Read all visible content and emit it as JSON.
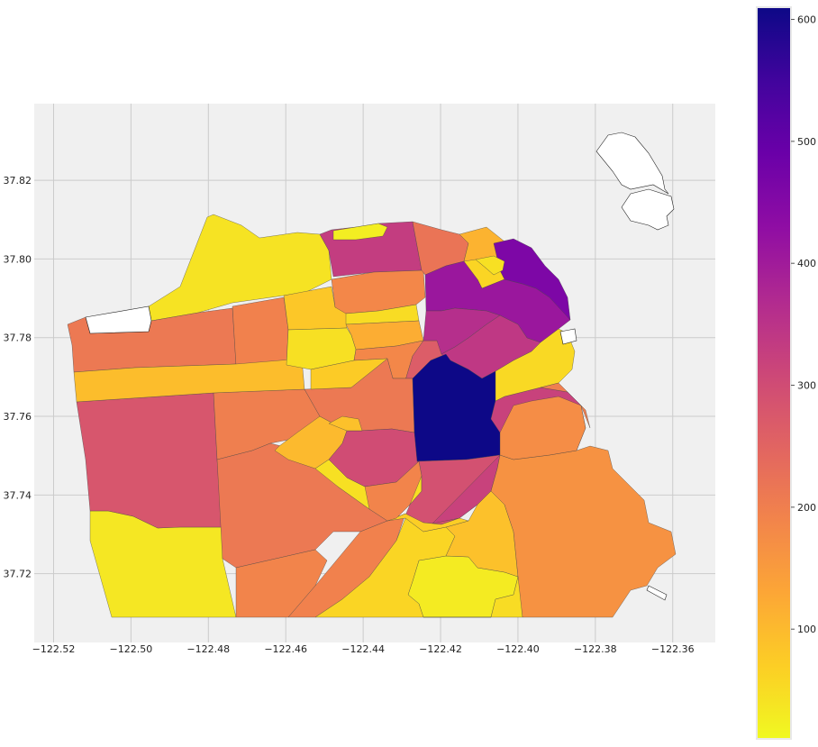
{
  "chart_data": {
    "type": "heatmap",
    "subtype": "choropleth-map",
    "title": "",
    "xlabel": "",
    "ylabel": "",
    "x_ticks": [
      "−122.52",
      "−122.50",
      "−122.48",
      "−122.46",
      "−122.44",
      "−122.42",
      "−122.40",
      "−122.38",
      "−122.36"
    ],
    "y_ticks": [
      "37.72",
      "37.74",
      "37.76",
      "37.78",
      "37.80",
      "37.82"
    ],
    "x_values": [
      -122.52,
      -122.5,
      -122.48,
      -122.46,
      -122.44,
      -122.42,
      -122.4,
      -122.38,
      -122.36
    ],
    "y_values": [
      37.72,
      37.74,
      37.76,
      37.78,
      37.8,
      37.82
    ],
    "xlim": [
      -122.525,
      -122.349
    ],
    "ylim": [
      37.7025,
      37.8395
    ],
    "grid": true,
    "colorbar": {
      "colormap": "plasma_r",
      "range": [
        10,
        610
      ],
      "ticks": [
        "100",
        "200",
        "300",
        "400",
        "500",
        "600"
      ],
      "tick_values": [
        100,
        200,
        300,
        400,
        500,
        600
      ],
      "placement": "right"
    },
    "regions": [
      {
        "value": 40
      },
      {
        "value": 35
      },
      {
        "value": 30
      },
      {
        "value": 210
      },
      {
        "value": 195
      },
      {
        "value": 280
      },
      {
        "value": 200
      },
      {
        "value": 95
      },
      {
        "value": 210
      },
      {
        "value": 190
      },
      {
        "value": 195
      },
      {
        "value": 60
      },
      {
        "value": 330
      },
      {
        "value": 80
      },
      {
        "value": 185
      },
      {
        "value": 50
      },
      {
        "value": 120
      },
      {
        "value": 45
      },
      {
        "value": 220
      },
      {
        "value": 110
      },
      {
        "value": 60
      },
      {
        "value": 185
      },
      {
        "value": 265
      },
      {
        "value": 100
      },
      {
        "value": 45
      },
      {
        "value": 210
      },
      {
        "value": 300
      },
      {
        "value": 75
      },
      {
        "value": 90
      },
      {
        "value": 410
      },
      {
        "value": 460
      },
      {
        "value": 360
      },
      {
        "value": 340
      },
      {
        "value": 610
      },
      {
        "value": 290
      },
      {
        "value": 320
      },
      {
        "value": 55
      },
      {
        "value": 90
      },
      {
        "value": 165
      },
      {
        "value": 175
      },
      {
        "value": 50
      },
      {
        "value": 45
      },
      {
        "value": 70
      },
      {
        "value": 190
      },
      {
        "value": 25
      },
      {
        "value": 200
      }
    ]
  }
}
